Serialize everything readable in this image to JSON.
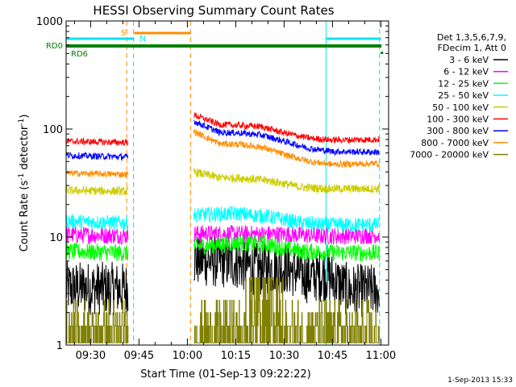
{
  "chart_data": {
    "type": "line",
    "title": "HESSI Observing Summary Count Rates",
    "xlabel": "Start Time (01-Sep-13 09:22:22)",
    "ylabel_main": "Count Rate (s",
    "ylabel_sup1": "-1",
    "ylabel_mid": " detector",
    "ylabel_sup2": "-1",
    "ylabel_end": ")",
    "yscale": "log",
    "ylim": [
      1,
      1000
    ],
    "xlim_minutes": [
      22.4,
      122.4
    ],
    "x_ticks": [
      {
        "label": "09:30",
        "min": 30
      },
      {
        "label": "09:45",
        "min": 45
      },
      {
        "label": "10:00",
        "min": 60
      },
      {
        "label": "10:15",
        "min": 75
      },
      {
        "label": "10:30",
        "min": 90
      },
      {
        "label": "10:45",
        "min": 105
      },
      {
        "label": "11:00",
        "min": 120
      }
    ],
    "y_ticks": [
      {
        "label": "1",
        "value": 1
      },
      {
        "label": "10",
        "value": 10
      },
      {
        "label": "100",
        "value": 100
      },
      {
        "label": "1000",
        "value": 1000
      }
    ],
    "legend_header": [
      "Det 1,3,5,6,7,9,",
      "FDecim 1, Att 0"
    ],
    "footer_stamp": "1-Sep-2013 15:33",
    "gaps": [
      [
        41.6,
        62.0
      ],
      [
        119.6,
        122.4
      ]
    ],
    "markers": {
      "rd0_label": "RD0",
      "rd6_label": "RD6",
      "s_label": "S",
      "n_label": "N",
      "saa_bar_minutes": [
        43.5,
        61.0
      ],
      "night_bars_minutes": [
        [
          22.4,
          43.5
        ],
        [
          103.0,
          120.0
        ]
      ],
      "saa_color": "#ff8c00",
      "night_color": "#00e5ee",
      "rd_color": "#008000"
    },
    "vlines": [
      {
        "min": 22.4,
        "color": "#00e5ee",
        "style": "solid"
      },
      {
        "min": 43.3,
        "color": "#00e5ee",
        "style": "dashed"
      },
      {
        "min": 41.2,
        "color": "#ff8c00",
        "style": "dashed"
      },
      {
        "min": 61.0,
        "color": "#ff8c00",
        "style": "dashed"
      },
      {
        "min": 103.0,
        "color": "#00e5ee",
        "style": "solid"
      },
      {
        "min": 119.6,
        "color": "#00e5ee",
        "style": "dashed"
      }
    ],
    "series": [
      {
        "name": "3 - 6 keV",
        "color": "#000000",
        "seg1": [
          [
            22.4,
            3.4
          ],
          [
            41.6,
            3.3
          ]
        ],
        "seg2": [
          [
            62.0,
            6.2
          ],
          [
            75,
            5.8
          ],
          [
            82,
            5.0
          ],
          [
            90,
            5.3
          ],
          [
            97,
            4.3
          ],
          [
            103,
            4.5
          ],
          [
            110,
            3.2
          ],
          [
            119.6,
            3.2
          ]
        ],
        "noise": 0.25
      },
      {
        "name": "6 - 12 keV",
        "color": "#ff00ff",
        "seg1": [
          [
            22.4,
            10.5
          ],
          [
            41.6,
            10.3
          ]
        ],
        "seg2": [
          [
            62.0,
            10.8
          ],
          [
            75,
            10.7
          ],
          [
            90,
            10.6
          ],
          [
            103,
            10.2
          ],
          [
            119.6,
            10.4
          ]
        ],
        "noise": 0.08
      },
      {
        "name": "12 - 25 keV",
        "color": "#00ff00",
        "seg1": [
          [
            22.4,
            7.4
          ],
          [
            41.6,
            7.1
          ]
        ],
        "seg2": [
          [
            62.0,
            8.2
          ],
          [
            75,
            8.8
          ],
          [
            85,
            8.5
          ],
          [
            95,
            7.4
          ],
          [
            103,
            7.2
          ],
          [
            119.6,
            7.1
          ]
        ],
        "noise": 0.08
      },
      {
        "name": "25 - 50 keV",
        "color": "#00ffff",
        "seg1": [
          [
            22.4,
            14.0
          ],
          [
            41.6,
            13.5
          ]
        ],
        "seg2": [
          [
            62.0,
            16.0
          ],
          [
            75,
            16.5
          ],
          [
            85,
            15.5
          ],
          [
            95,
            13.5
          ],
          [
            103,
            13.0
          ],
          [
            119.6,
            13.0
          ]
        ],
        "noise": 0.07
      },
      {
        "name": "50 - 100 keV",
        "color": "#cccc00",
        "seg1": [
          [
            22.4,
            27.0
          ],
          [
            41.6,
            26.5
          ]
        ],
        "seg2": [
          [
            62.0,
            40.0
          ],
          [
            70,
            35.5
          ],
          [
            78,
            35.0
          ],
          [
            86,
            33.0
          ],
          [
            95,
            29.0
          ],
          [
            103,
            28.0
          ],
          [
            119.6,
            28.0
          ]
        ],
        "noise": 0.04
      },
      {
        "name": "100 - 300 keV",
        "color": "#ff0000",
        "seg1": [
          [
            22.4,
            77.0
          ],
          [
            41.6,
            75.0
          ]
        ],
        "seg2": [
          [
            62.0,
            135.0
          ],
          [
            70,
            110.0
          ],
          [
            76,
            108.0
          ],
          [
            83,
            105.0
          ],
          [
            90,
            92.0
          ],
          [
            98,
            82.0
          ],
          [
            105,
            79.0
          ],
          [
            119.6,
            80.0
          ]
        ],
        "noise": 0.03
      },
      {
        "name": "300 - 800 keV",
        "color": "#0000ff",
        "seg1": [
          [
            22.4,
            57.0
          ],
          [
            41.6,
            55.0
          ]
        ],
        "seg2": [
          [
            62.0,
            118.0
          ],
          [
            70,
            93.0
          ],
          [
            76,
            92.0
          ],
          [
            83,
            88.0
          ],
          [
            90,
            77.0
          ],
          [
            98,
            66.0
          ],
          [
            105,
            62.0
          ],
          [
            119.6,
            61.0
          ]
        ],
        "noise": 0.03
      },
      {
        "name": "800 - 7000 keV",
        "color": "#ff8c00",
        "seg1": [
          [
            22.4,
            39.0
          ],
          [
            41.6,
            38.0
          ]
        ],
        "seg2": [
          [
            62.0,
            95.0
          ],
          [
            70,
            73.0
          ],
          [
            76,
            72.0
          ],
          [
            83,
            68.0
          ],
          [
            90,
            58.0
          ],
          [
            98,
            50.0
          ],
          [
            105,
            47.0
          ],
          [
            119.6,
            48.0
          ]
        ],
        "noise": 0.03
      },
      {
        "name": "7000 - 20000 keV",
        "color": "#808000",
        "seg1": [
          [
            22.4,
            1.5
          ],
          [
            41.6,
            1.5
          ]
        ],
        "seg2": [
          [
            62.0,
            1.6
          ],
          [
            119.6,
            1.6
          ]
        ],
        "noise": 0.0
      }
    ]
  }
}
